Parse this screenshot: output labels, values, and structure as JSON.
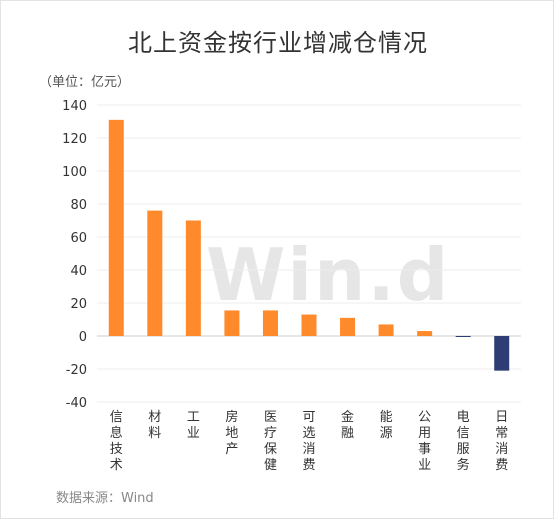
{
  "title": "北上资金按行业增减仓情况",
  "unit_label": "（单位：亿元）",
  "source": "数据来源：Wind",
  "watermark": "Win.d",
  "chart_data": {
    "type": "bar",
    "title": "北上资金按行业增减仓情况",
    "xlabel": "",
    "ylabel": "",
    "ylim": [
      -40,
      140
    ],
    "yticks": [
      -40,
      -20,
      0,
      20,
      40,
      60,
      80,
      100,
      120,
      140
    ],
    "grid": true,
    "categories": [
      "信息技术",
      "材料",
      "工业",
      "房地产",
      "医疗保健",
      "可选消费",
      "金融",
      "能源",
      "公用事业",
      "电信服务",
      "日常消费"
    ],
    "values": [
      131,
      76,
      70,
      15.5,
      15.5,
      13,
      11,
      7,
      3,
      -0.5,
      -21
    ],
    "colors": {
      "positive": "#FF8A2B",
      "negative": "#2E3D73"
    }
  }
}
